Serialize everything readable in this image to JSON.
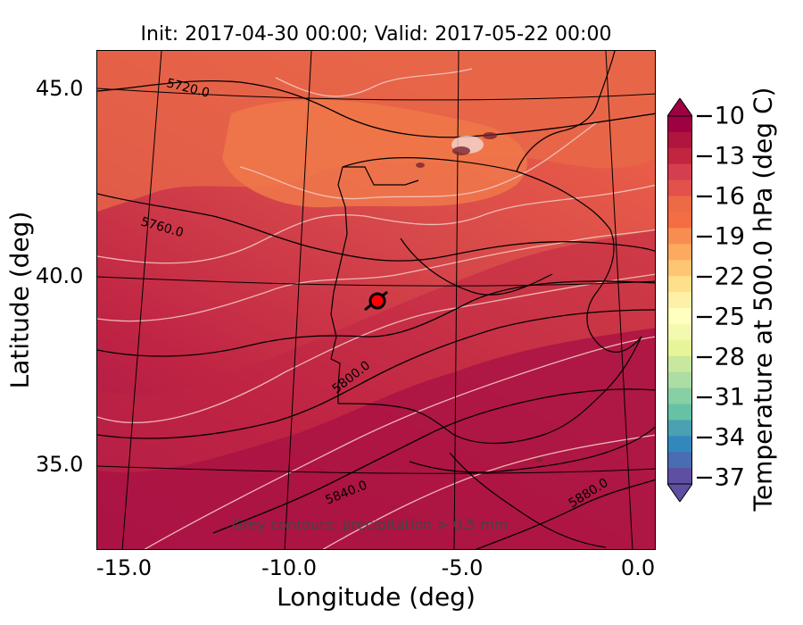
{
  "title": "Init: 2017-04-30 00:00; Valid: 2017-05-22 00:00",
  "xlabel": "Longitude (deg)",
  "ylabel": "Latitude (deg)",
  "x_ticks": [
    "-15.0",
    "-10.0",
    "-5.0",
    "0.0"
  ],
  "y_ticks": [
    "45.0",
    "40.0",
    "35.0"
  ],
  "colorbar": {
    "label": "Temperature at 500.0 hPa (deg C)",
    "ticks": [
      "−10",
      "−13",
      "−16",
      "−19",
      "−22",
      "−25",
      "−28",
      "−31",
      "−34",
      "−37"
    ],
    "colors": [
      "#9e0142",
      "#b0153f",
      "#c2253f",
      "#d53e4f",
      "#e2514a",
      "#ec6a44",
      "#f46d43",
      "#f88d52",
      "#fcaa5f",
      "#fdc574",
      "#fee08b",
      "#fef0a7",
      "#ffffbf",
      "#f3fab0",
      "#e6f598",
      "#c7e89e",
      "#abdda4",
      "#87cfa4",
      "#66c2a5",
      "#4ba0b1",
      "#3288bd",
      "#4a6cb0",
      "#5e4fa2"
    ]
  },
  "contour_labels": [
    "5720.0",
    "5760.0",
    "5800.0",
    "5840.0",
    "5880.0"
  ],
  "annotation": "Grey contours: precipitation > 0.5 mm",
  "chart_data": {
    "type": "map",
    "field": "Temperature at 500.0 hPa (deg C)",
    "extent": {
      "lon": [
        -15.8,
        0.2
      ],
      "lat": [
        32.6,
        46.0
      ]
    },
    "color_scale": {
      "min": -37,
      "max": -10,
      "step": 3
    },
    "geopotential_contours_m": [
      5720,
      5760,
      5800,
      5840,
      5880
    ],
    "marker": {
      "lon": -7.6,
      "lat": 39.4,
      "color": "#ff0000"
    }
  }
}
